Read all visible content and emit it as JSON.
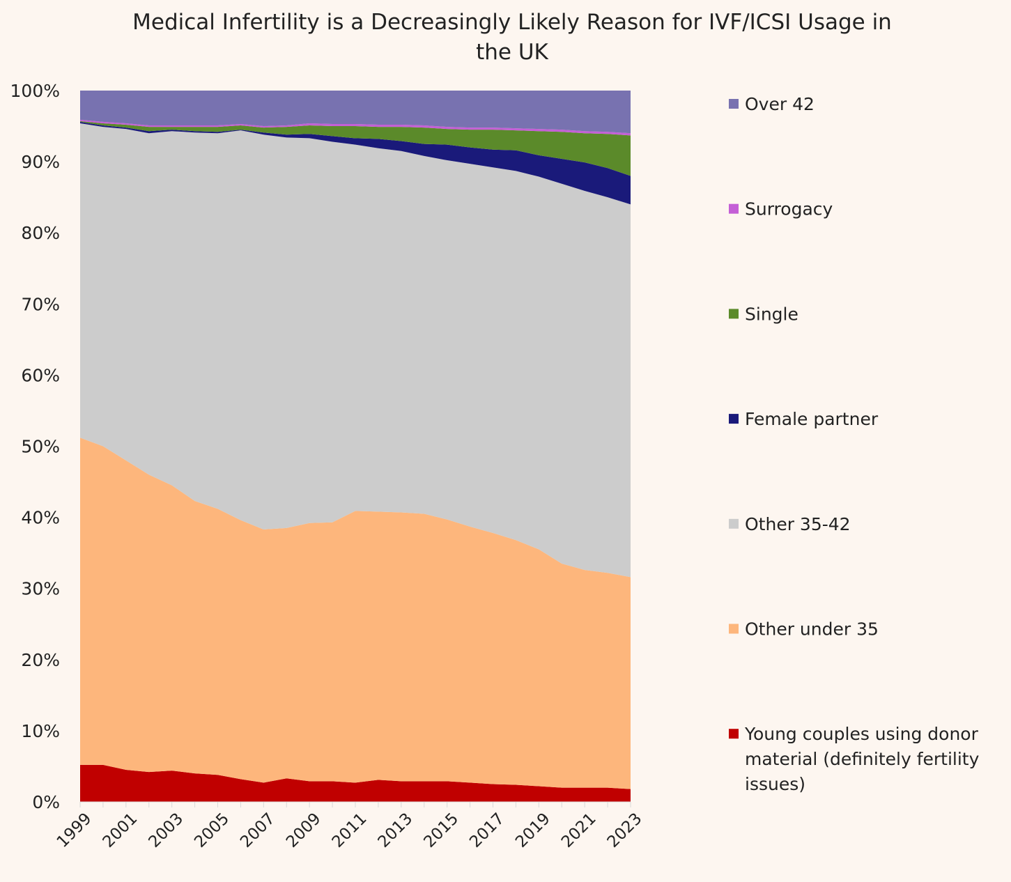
{
  "chart_data": {
    "type": "area",
    "stacked": true,
    "title": "Medical Infertility is a Decreasingly Likely Reason for IVF/ICSI Usage in the UK",
    "title_lines": [
      "Medical Infertility is a Decreasingly Likely Reason for IVF/ICSI Usage in",
      "the UK"
    ],
    "xlabel": "",
    "ylabel": "",
    "ylim": [
      0,
      100
    ],
    "y_ticks": [
      "0%",
      "10%",
      "20%",
      "30%",
      "40%",
      "50%",
      "60%",
      "70%",
      "80%",
      "90%",
      "100%"
    ],
    "x": [
      1999,
      2000,
      2001,
      2002,
      2003,
      2004,
      2005,
      2006,
      2007,
      2008,
      2009,
      2010,
      2011,
      2012,
      2013,
      2014,
      2015,
      2016,
      2017,
      2018,
      2019,
      2020,
      2021,
      2022,
      2023
    ],
    "x_tick_labels": [
      "1999",
      "2001",
      "2003",
      "2005",
      "2007",
      "2009",
      "2011",
      "2013",
      "2015",
      "2017",
      "2019",
      "2021",
      "2023"
    ],
    "legend_position": "right",
    "series": [
      {
        "name": "Young couples using donor material (definitely fertility issues)",
        "legend_lines": [
          "Young couples using donor",
          "material (definitely fertility",
          "issues)"
        ],
        "color": "#c00000",
        "values": [
          5.2,
          5.2,
          4.5,
          4.2,
          4.4,
          4.0,
          3.8,
          3.2,
          2.7,
          3.3,
          2.9,
          2.9,
          2.7,
          3.1,
          2.9,
          2.9,
          2.9,
          2.7,
          2.5,
          2.4,
          2.2,
          2.0,
          2.0,
          2.0,
          1.8
        ]
      },
      {
        "name": "Other under 35",
        "color": "#fdb67c",
        "values": [
          46.0,
          44.8,
          43.5,
          41.8,
          40.1,
          38.3,
          37.4,
          36.4,
          35.6,
          35.2,
          36.3,
          36.4,
          38.2,
          37.7,
          37.8,
          37.6,
          36.8,
          36.0,
          35.3,
          34.4,
          33.3,
          31.5,
          30.6,
          30.2,
          29.8
        ]
      },
      {
        "name": "Other 35-42",
        "color": "#cccccc",
        "values": [
          44.2,
          44.9,
          46.6,
          48.0,
          49.8,
          51.8,
          52.8,
          54.8,
          55.5,
          54.9,
          54.1,
          53.5,
          51.5,
          51.1,
          50.8,
          50.3,
          50.5,
          51.0,
          51.4,
          51.9,
          52.4,
          53.4,
          53.3,
          52.8,
          52.4
        ]
      },
      {
        "name": "Female partner",
        "color": "#1a1a7a",
        "values": [
          0.2,
          0.2,
          0.2,
          0.3,
          0.2,
          0.2,
          0.2,
          0.1,
          0.3,
          0.4,
          0.6,
          0.8,
          0.9,
          1.3,
          1.4,
          1.7,
          2.2,
          2.3,
          2.5,
          2.9,
          3.0,
          3.5,
          4.0,
          4.1,
          4.0
        ]
      },
      {
        "name": "Single",
        "color": "#5b8a2a",
        "values": [
          0.1,
          0.3,
          0.4,
          0.6,
          0.4,
          0.6,
          0.7,
          0.6,
          0.7,
          1.1,
          1.2,
          1.4,
          1.7,
          1.7,
          2.0,
          2.3,
          2.2,
          2.5,
          2.8,
          2.8,
          3.4,
          3.8,
          4.1,
          4.8,
          5.7
        ]
      },
      {
        "name": "Surrogacy",
        "color": "#c45fd6",
        "values": [
          0.2,
          0.2,
          0.2,
          0.2,
          0.2,
          0.2,
          0.2,
          0.2,
          0.2,
          0.2,
          0.3,
          0.3,
          0.3,
          0.3,
          0.3,
          0.3,
          0.3,
          0.3,
          0.3,
          0.3,
          0.3,
          0.3,
          0.3,
          0.3,
          0.3
        ]
      },
      {
        "name": "Over 42",
        "color": "#7872b0",
        "values": [
          4.1,
          4.4,
          4.6,
          4.9,
          4.9,
          4.9,
          4.9,
          4.7,
          5.0,
          4.9,
          4.6,
          4.7,
          4.7,
          4.8,
          4.8,
          4.9,
          5.1,
          5.2,
          5.2,
          5.3,
          5.4,
          5.5,
          5.7,
          5.8,
          6.0
        ]
      }
    ],
    "legend_order": [
      "Over 42",
      "Surrogacy",
      "Single",
      "Female partner",
      "Other 35-42",
      "Other under 35",
      "Young couples using donor material (definitely fertility issues)"
    ]
  }
}
